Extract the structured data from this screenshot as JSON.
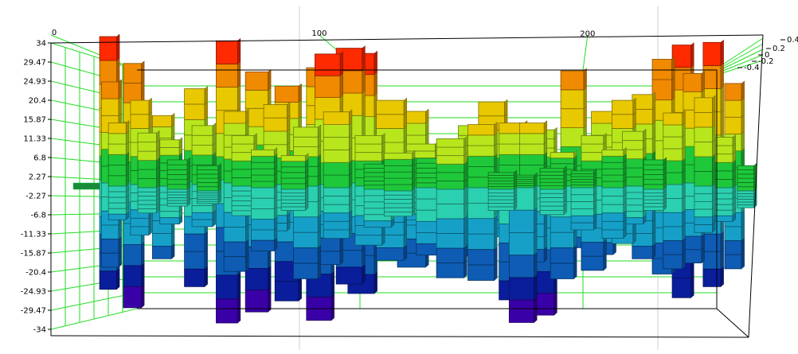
{
  "chart_data": {
    "type": "bar",
    "style": "3d-stacked-panels",
    "title": "",
    "xlabel": "",
    "ylabel": "",
    "grid": true,
    "x_ticks": [
      "0",
      "100",
      "200"
    ],
    "y_ticks": [
      "34",
      "29.47",
      "24.93",
      "20.4",
      "15.87",
      "11.33",
      "6.8",
      "2.27",
      "-2.27",
      "-6.8",
      "-11.33",
      "-15.87",
      "-20.4",
      "-24.93",
      "-29.47",
      "-34"
    ],
    "z_ticks": [
      "0.4",
      "0.2",
      "0",
      "-0.2",
      "-0.4"
    ],
    "xlim": [
      0,
      260
    ],
    "ylim": [
      -34,
      34
    ],
    "colormap": [
      "#3a00a8",
      "#0a1e9c",
      "#0e5cb4",
      "#16a0c8",
      "#2bd0b0",
      "#1ec83a",
      "#b8e61c",
      "#e8c800",
      "#f08a00",
      "#ff2a00"
    ],
    "bars": [
      {
        "x": 8,
        "depth": 0.4,
        "top": 34,
        "bottom": -26
      },
      {
        "x": 10,
        "depth": 0.2,
        "top": 24,
        "bottom": -20
      },
      {
        "x": 14,
        "depth": 0.0,
        "top": 15,
        "bottom": -8
      },
      {
        "x": 18,
        "depth": 0.3,
        "top": 28,
        "bottom": -30
      },
      {
        "x": 22,
        "depth": 0.1,
        "top": 20,
        "bottom": -12
      },
      {
        "x": 26,
        "depth": -0.1,
        "top": 13,
        "bottom": -6
      },
      {
        "x": 30,
        "depth": 0.2,
        "top": 16,
        "bottom": -18
      },
      {
        "x": 34,
        "depth": 0.0,
        "top": 11,
        "bottom": -9
      },
      {
        "x": 38,
        "depth": -0.2,
        "top": 7,
        "bottom": -4
      },
      {
        "x": 42,
        "depth": 0.3,
        "top": 22,
        "bottom": -25
      },
      {
        "x": 46,
        "depth": 0.1,
        "top": 14,
        "bottom": -10
      },
      {
        "x": 50,
        "depth": -0.3,
        "top": 6,
        "bottom": -3
      },
      {
        "x": 54,
        "depth": 0.4,
        "top": 33,
        "bottom": -34
      },
      {
        "x": 58,
        "depth": 0.2,
        "top": 17,
        "bottom": -21
      },
      {
        "x": 62,
        "depth": 0.0,
        "top": 12,
        "bottom": -7
      },
      {
        "x": 66,
        "depth": 0.3,
        "top": 26,
        "bottom": -31
      },
      {
        "x": 70,
        "depth": -0.1,
        "top": 9,
        "bottom": -15
      },
      {
        "x": 74,
        "depth": 0.1,
        "top": 19,
        "bottom": -11
      },
      {
        "x": 78,
        "depth": 0.2,
        "top": 23,
        "bottom": -28
      },
      {
        "x": 82,
        "depth": -0.2,
        "top": 8,
        "bottom": -5
      },
      {
        "x": 86,
        "depth": 0.0,
        "top": 14,
        "bottom": -22
      },
      {
        "x": 90,
        "depth": 0.3,
        "top": 27,
        "bottom": -33
      },
      {
        "x": 94,
        "depth": 0.1,
        "top": 31,
        "bottom": -19
      },
      {
        "x": 98,
        "depth": -0.1,
        "top": 18,
        "bottom": -12
      },
      {
        "x": 102,
        "depth": 0.2,
        "top": 32,
        "bottom": -24
      },
      {
        "x": 106,
        "depth": 0.4,
        "top": 30,
        "bottom": -27
      },
      {
        "x": 110,
        "depth": 0.0,
        "top": 12,
        "bottom": -14
      },
      {
        "x": 114,
        "depth": -0.2,
        "top": 6,
        "bottom": -9
      },
      {
        "x": 118,
        "depth": 0.1,
        "top": 20,
        "bottom": -18
      },
      {
        "x": 122,
        "depth": -0.3,
        "top": 9,
        "bottom": -6
      },
      {
        "x": 126,
        "depth": 0.2,
        "top": 17,
        "bottom": -20
      },
      {
        "x": 130,
        "depth": 0.0,
        "top": 10,
        "bottom": -8
      },
      {
        "x": 134,
        "depth": -0.1,
        "top": 7,
        "bottom": -16
      },
      {
        "x": 138,
        "depth": 0.1,
        "top": 5,
        "bottom": -10
      },
      {
        "x": 142,
        "depth": -0.2,
        "top": 12,
        "bottom": -21
      },
      {
        "x": 146,
        "depth": 0.0,
        "top": 8,
        "bottom": -13
      },
      {
        "x": 150,
        "depth": 0.1,
        "top": 14,
        "bottom": -17
      },
      {
        "x": 154,
        "depth": -0.1,
        "top": 15,
        "bottom": -22
      },
      {
        "x": 158,
        "depth": 0.0,
        "top": 20,
        "bottom": -12
      },
      {
        "x": 162,
        "depth": -0.2,
        "top": 4,
        "bottom": -5
      },
      {
        "x": 166,
        "depth": 0.0,
        "top": 15,
        "bottom": -27
      },
      {
        "x": 170,
        "depth": -0.1,
        "top": 3,
        "bottom": -32
      },
      {
        "x": 174,
        "depth": 0.0,
        "top": 15,
        "bottom": -18
      },
      {
        "x": 178,
        "depth": 0.1,
        "top": 13,
        "bottom": -31
      },
      {
        "x": 182,
        "depth": -0.2,
        "top": 5,
        "bottom": -6
      },
      {
        "x": 186,
        "depth": 0.0,
        "top": 8,
        "bottom": -22
      },
      {
        "x": 190,
        "depth": 0.1,
        "top": 27,
        "bottom": -15
      },
      {
        "x": 194,
        "depth": -0.1,
        "top": 4,
        "bottom": -10
      },
      {
        "x": 198,
        "depth": 0.0,
        "top": 12,
        "bottom": -20
      },
      {
        "x": 202,
        "depth": 0.2,
        "top": 17,
        "bottom": -17
      },
      {
        "x": 206,
        "depth": -0.1,
        "top": 9,
        "bottom": -12
      },
      {
        "x": 210,
        "depth": 0.1,
        "top": 20,
        "bottom": -14
      },
      {
        "x": 214,
        "depth": 0.0,
        "top": 13,
        "bottom": -9
      },
      {
        "x": 218,
        "depth": 0.2,
        "top": 21,
        "bottom": -18
      },
      {
        "x": 222,
        "depth": -0.2,
        "top": 7,
        "bottom": -5
      },
      {
        "x": 226,
        "depth": 0.3,
        "top": 29,
        "bottom": -22
      },
      {
        "x": 230,
        "depth": 0.1,
        "top": 17,
        "bottom": -20
      },
      {
        "x": 234,
        "depth": 0.4,
        "top": 32,
        "bottom": -28
      },
      {
        "x": 238,
        "depth": 0.2,
        "top": 26,
        "bottom": -19
      },
      {
        "x": 242,
        "depth": 0.0,
        "top": 21,
        "bottom": -11
      },
      {
        "x": 246,
        "depth": 0.3,
        "top": 33,
        "bottom": -25
      },
      {
        "x": 250,
        "depth": -0.1,
        "top": 12,
        "bottom": -8
      },
      {
        "x": 254,
        "depth": 0.1,
        "top": 24,
        "bottom": -20
      },
      {
        "x": 258,
        "depth": -0.3,
        "top": 6,
        "bottom": -4
      }
    ]
  }
}
